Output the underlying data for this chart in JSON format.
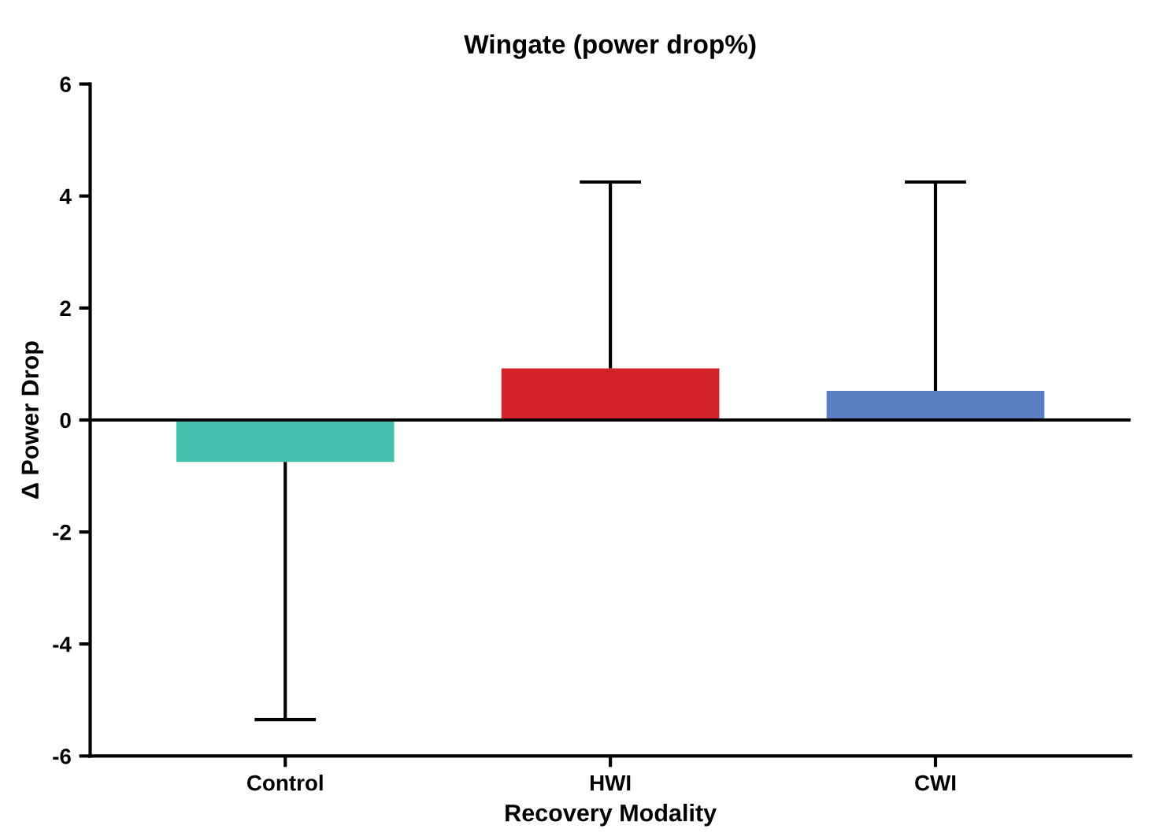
{
  "chart_data": {
    "type": "bar",
    "title": "Wingate (power drop%)",
    "xlabel": "Recovery Modality",
    "ylabel": "Δ Power Drop",
    "categories": [
      "Control",
      "HWI",
      "CWI"
    ],
    "values": [
      -0.75,
      0.92,
      0.52
    ],
    "colors": [
      "#45bfae",
      "#d3222a",
      "#5b7fc3"
    ],
    "errors": [
      [
        -5.35,
        -0.75
      ],
      [
        0.92,
        4.25
      ],
      [
        0.52,
        4.25
      ]
    ],
    "ylim": [
      -6,
      6
    ],
    "yticks": [
      -6,
      -4,
      -2,
      0,
      2,
      4,
      6
    ],
    "ref_lines": [
      {
        "axis": "y",
        "value": 0,
        "color": "#000000"
      }
    ],
    "grid": false,
    "legend": false
  }
}
